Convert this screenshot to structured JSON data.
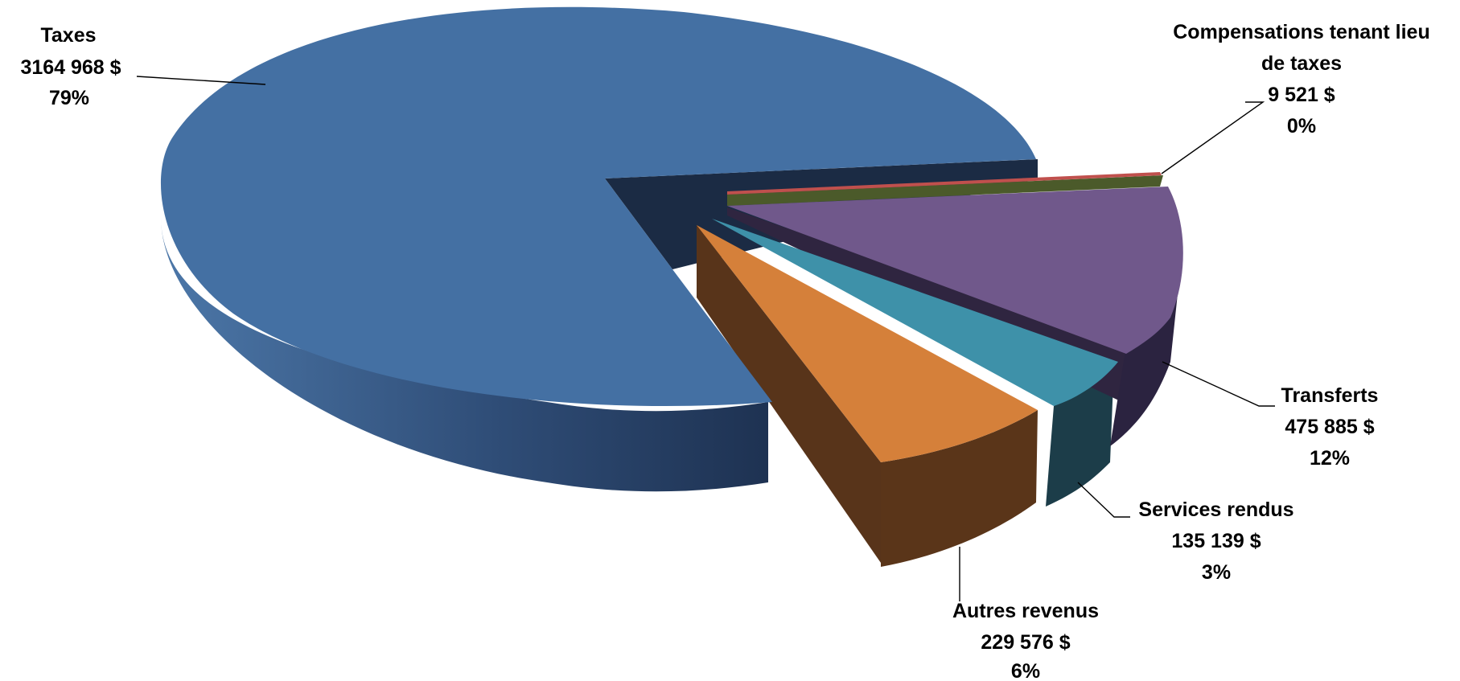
{
  "chart_data": {
    "type": "pie",
    "style": "3d-exploded",
    "title": "",
    "legend": "none",
    "slices": [
      {
        "name": "Taxes",
        "value": 3164968,
        "value_label": "3164 968  $",
        "percent_label": "79%",
        "color": "#4470a3"
      },
      {
        "name": "Compensations tenant lieu de taxes",
        "name_lines": [
          "Compensations tenant lieu",
          "de taxes"
        ],
        "value": 9521,
        "value_label": "9 521  $",
        "percent_label": "0%",
        "color": "#c0504d"
      },
      {
        "name": "Transferts",
        "value": 475885,
        "value_label": "475 885  $",
        "percent_label": "12%",
        "color": "#70588b"
      },
      {
        "name": "Services rendus",
        "value": 135139,
        "value_label": "135 139  $",
        "percent_label": "3%",
        "color": "#3e91a9"
      },
      {
        "name": "Autres revenus",
        "value": 229576,
        "value_label": "229 576  $",
        "percent_label": "6%",
        "color": "#d5803a"
      }
    ],
    "accent_colors": {
      "sliver_side": "#4b5a2a"
    }
  }
}
